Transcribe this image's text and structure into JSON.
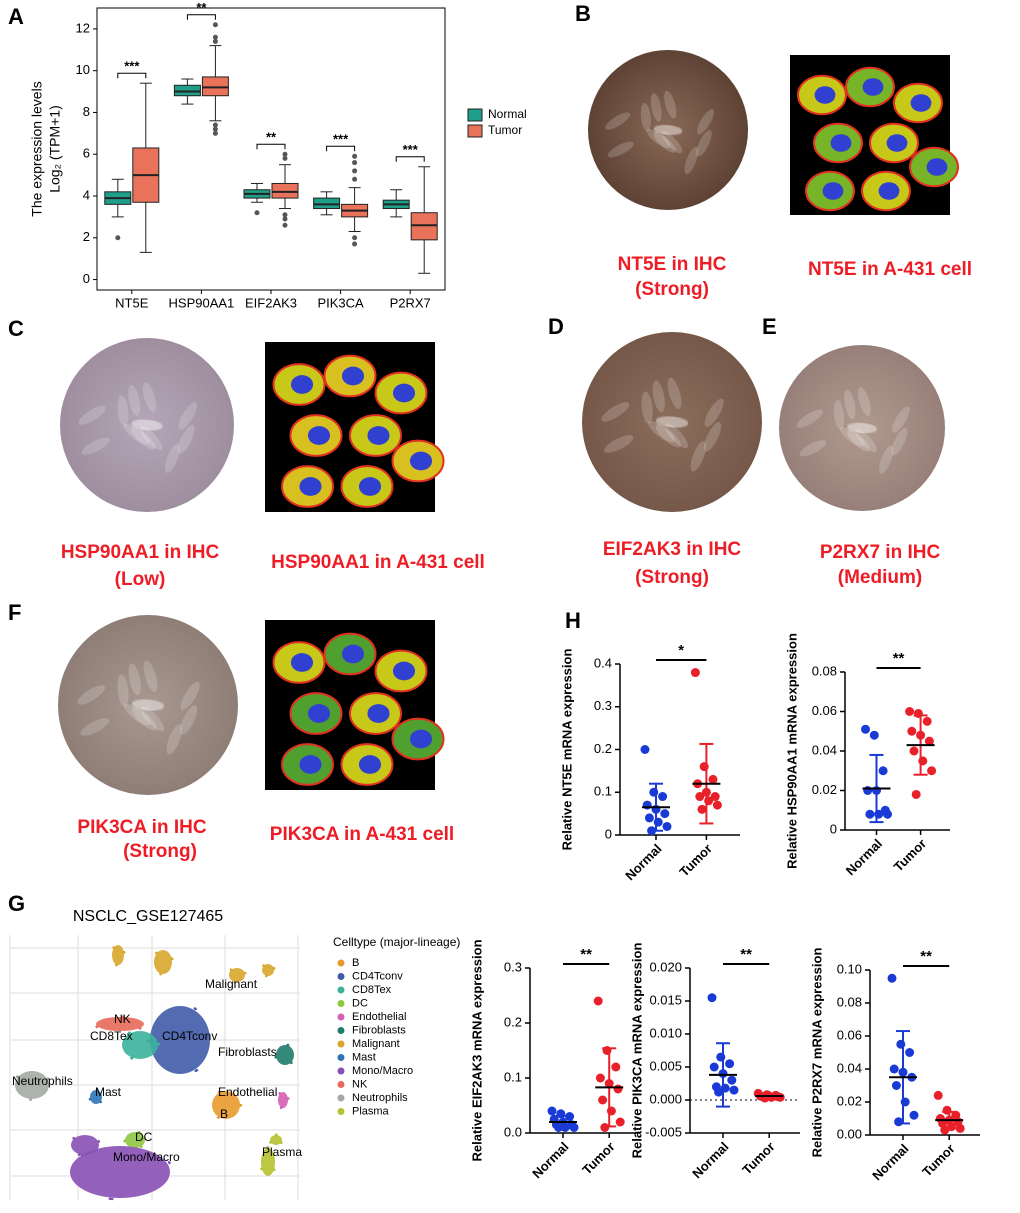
{
  "panel_letters": [
    "A",
    "B",
    "C",
    "D",
    "E",
    "F",
    "H",
    "G"
  ],
  "captions": [
    [
      "NT5E in IHC",
      "(Strong)"
    ],
    [
      "NT5E in A-431 cell"
    ],
    [
      "HSP90AA1 in IHC",
      "(Low)"
    ],
    [
      "HSP90AA1 in A-431 cell"
    ],
    [
      "EIF2AK3 in IHC",
      "(Strong)"
    ],
    [
      "P2RX7 in IHC",
      "(Medium)"
    ],
    [
      "PIK3CA in IHC",
      "(Strong)"
    ],
    [
      "PIK3CA in A-431 cell"
    ]
  ],
  "umap": {
    "title": "NSCLC_GSE127465",
    "legend_title": "Celltype (major-lineage)",
    "celltypes": [
      {
        "name": "B",
        "color": "#e89a2e"
      },
      {
        "name": "CD4Tconv",
        "color": "#3f5ba9"
      },
      {
        "name": "CD8Tex",
        "color": "#3bb39b"
      },
      {
        "name": "DC",
        "color": "#8fc640"
      },
      {
        "name": "Endothelial",
        "color": "#d55fb3"
      },
      {
        "name": "Fibroblasts",
        "color": "#1e7c6c"
      },
      {
        "name": "Malignant",
        "color": "#d7a62b"
      },
      {
        "name": "Mast",
        "color": "#2e74b6"
      },
      {
        "name": "Mono/Macro",
        "color": "#8750b4"
      },
      {
        "name": "NK",
        "color": "#e8695a"
      },
      {
        "name": "Neutrophils",
        "color": "#a3aaa3"
      },
      {
        "name": "Plasma",
        "color": "#b5c12f"
      }
    ],
    "labels": [
      "Malignant",
      "NK",
      "CD8Tex",
      "CD4Tconv",
      "Fibroblasts",
      "Neutrophils",
      "Mast",
      "Endothelial",
      "B",
      "DC",
      "Mono/Macro",
      "Plasma"
    ]
  },
  "chart_data": [
    {
      "type": "box",
      "ylabel": "The expression levels",
      "ylabel2": "Log₂ (TPM+1)",
      "categories": [
        "NT5E",
        "HSP90AA1",
        "EIF2AK3",
        "PIK3CA",
        "P2RX7"
      ],
      "significance": [
        "***",
        "**",
        "**",
        "***",
        "***"
      ],
      "series": [
        {
          "name": "Normal",
          "color": "#1f9e89",
          "values": [
            {
              "min": 3.0,
              "q1": 3.6,
              "median": 3.9,
              "q3": 4.2,
              "max": 4.8,
              "outliers": [
                2.0
              ]
            },
            {
              "min": 8.4,
              "q1": 8.8,
              "median": 9.0,
              "q3": 9.3,
              "max": 9.6,
              "outliers": []
            },
            {
              "min": 3.7,
              "q1": 3.9,
              "median": 4.1,
              "q3": 4.3,
              "max": 4.6,
              "outliers": [
                3.2
              ]
            },
            {
              "min": 3.1,
              "q1": 3.4,
              "median": 3.6,
              "q3": 3.9,
              "max": 4.2,
              "outliers": []
            },
            {
              "min": 3.0,
              "q1": 3.4,
              "median": 3.6,
              "q3": 3.8,
              "max": 4.3,
              "outliers": []
            }
          ]
        },
        {
          "name": "Tumor",
          "color": "#e8735a",
          "values": [
            {
              "min": 1.3,
              "q1": 3.7,
              "median": 5.0,
              "q3": 6.3,
              "max": 9.4,
              "outliers": []
            },
            {
              "min": 7.6,
              "q1": 8.8,
              "median": 9.2,
              "q3": 9.7,
              "max": 11.2,
              "outliers": [
                7.4,
                7.2,
                7.0,
                11.4,
                11.6,
                12.2
              ]
            },
            {
              "min": 3.4,
              "q1": 3.9,
              "median": 4.2,
              "q3": 4.6,
              "max": 5.5,
              "outliers": [
                2.6,
                2.9,
                3.1,
                5.8,
                6.0
              ]
            },
            {
              "min": 2.3,
              "q1": 3.0,
              "median": 3.3,
              "q3": 3.6,
              "max": 4.4,
              "outliers": [
                1.7,
                2.0,
                4.8,
                5.2,
                5.6,
                5.9
              ]
            },
            {
              "min": 0.3,
              "q1": 1.9,
              "median": 2.6,
              "q3": 3.2,
              "max": 5.4,
              "outliers": []
            }
          ]
        }
      ],
      "ylim": [
        -0.5,
        13
      ],
      "yticks": [
        0,
        2,
        4,
        6,
        8,
        10,
        12
      ]
    },
    {
      "type": "dot",
      "ylabel": "Relative NT5E mRNA expression",
      "categories": [
        "Normal",
        "Tumor"
      ],
      "colors": [
        "#1a3ad6",
        "#e8202a"
      ],
      "values": [
        [
          0.2,
          0.1,
          0.09,
          0.07,
          0.06,
          0.05,
          0.04,
          0.03,
          0.02,
          0.01
        ],
        [
          0.38,
          0.16,
          0.13,
          0.12,
          0.1,
          0.09,
          0.09,
          0.08,
          0.07,
          0.06
        ]
      ],
      "means": [
        0.065,
        0.12
      ],
      "sds": [
        0.055,
        0.093
      ],
      "significance": "*",
      "ylim": [
        0,
        0.4
      ],
      "yticks": [
        0,
        0.1,
        0.2,
        0.3,
        0.4
      ]
    },
    {
      "type": "dot",
      "ylabel": "Relative HSP90AA1 mRNA expression",
      "categories": [
        "Normal",
        "Tumor"
      ],
      "colors": [
        "#1a3ad6",
        "#e8202a"
      ],
      "values": [
        [
          0.051,
          0.048,
          0.03,
          0.02,
          0.02,
          0.01,
          0.008,
          0.008,
          0.008
        ],
        [
          0.06,
          0.059,
          0.055,
          0.05,
          0.048,
          0.045,
          0.04,
          0.035,
          0.03,
          0.018
        ]
      ],
      "means": [
        0.021,
        0.043
      ],
      "sds": [
        0.017,
        0.015
      ],
      "significance": "**",
      "ylim": [
        0,
        0.08
      ],
      "yticks": [
        0,
        0.02,
        0.04,
        0.06,
        0.08
      ]
    },
    {
      "type": "dot",
      "ylabel": "Relative EIF2AK3 mRNA expression",
      "categories": [
        "Normal",
        "Tumor"
      ],
      "colors": [
        "#1a3ad6",
        "#e8202a"
      ],
      "values": [
        [
          0.04,
          0.035,
          0.03,
          0.025,
          0.02,
          0.015,
          0.015,
          0.01,
          0.01,
          0.01
        ],
        [
          0.24,
          0.15,
          0.12,
          0.1,
          0.09,
          0.08,
          0.06,
          0.04,
          0.02,
          0.01
        ]
      ],
      "means": [
        0.02,
        0.083
      ],
      "sds": [
        0.011,
        0.071
      ],
      "significance": "**",
      "ylim": [
        0,
        0.3
      ],
      "yticks": [
        {
          "value": 0,
          "label": "0.0"
        },
        0.1,
        0.2,
        0.3
      ]
    },
    {
      "type": "dot",
      "ylabel": "Relative PIK3CA mRNA expression",
      "categories": [
        "Normal",
        "Tumor"
      ],
      "colors": [
        "#1a3ad6",
        "#e8202a"
      ],
      "values": [
        [
          0.0155,
          0.0065,
          0.0055,
          0.005,
          0.004,
          0.003,
          0.002,
          0.0018,
          0.0015,
          0.0012
        ],
        [
          0.001,
          0.0008,
          0.0007,
          0.0006,
          0.0006,
          0.0005,
          0.0005,
          0.0004,
          0.0004,
          0.0003
        ]
      ],
      "means": [
        0.0038,
        0.0006
      ],
      "sds": [
        0.0048,
        0.0002
      ],
      "significance": "**",
      "zero_line": true,
      "ylim": [
        -0.005,
        0.02
      ],
      "yticks": [
        -0.005,
        {
          "value": 0,
          "label": "0.000"
        },
        0.005,
        {
          "value": 0.01,
          "label": "0.010"
        },
        0.015,
        {
          "value": 0.02,
          "label": "0.020"
        }
      ]
    },
    {
      "type": "dot",
      "ylabel": "Relative P2RX7  mRNA expression",
      "categories": [
        "Normal",
        "Tumor"
      ],
      "colors": [
        "#1a3ad6",
        "#e8202a"
      ],
      "values": [
        [
          0.095,
          0.055,
          0.05,
          0.04,
          0.038,
          0.035,
          0.03,
          0.02,
          0.012,
          0.008
        ],
        [
          0.024,
          0.015,
          0.012,
          0.01,
          0.009,
          0.008,
          0.007,
          0.005,
          0.004,
          0.003
        ]
      ],
      "means": [
        0.035,
        0.009
      ],
      "sds": [
        0.028,
        0.005
      ],
      "significance": "**",
      "ylim": [
        0,
        0.1
      ],
      "yticks": [
        {
          "value": 0,
          "label": "0.00"
        },
        0.02,
        0.04,
        0.06,
        0.08,
        {
          "value": 0.1,
          "label": "0.10"
        }
      ]
    }
  ]
}
